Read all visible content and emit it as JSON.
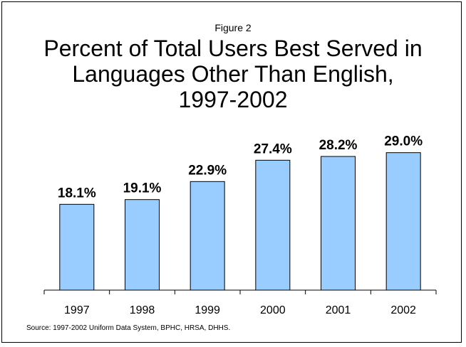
{
  "figure_label": "Figure 2",
  "title_lines": [
    "Percent of Total Users Best Served in",
    "Languages Other Than English,",
    "1997-2002"
  ],
  "source": "Source:  1997-2002 Uniform Data System, BPHC, HRSA, DHHS.",
  "colors": {
    "bar_fill": "#99ccff",
    "bar_stroke": "#000000",
    "axis": "#000000",
    "text": "#000000"
  },
  "chart_data": {
    "type": "bar",
    "title": "Percent of Total Users Best Served in Languages Other Than English, 1997-2002",
    "categories": [
      "1997",
      "1998",
      "1999",
      "2000",
      "2001",
      "2002"
    ],
    "values": [
      18.1,
      19.1,
      22.9,
      27.4,
      28.2,
      29.0
    ],
    "value_labels": [
      "18.1%",
      "19.1%",
      "22.9%",
      "27.4%",
      "28.2%",
      "29.0%"
    ],
    "xlabel": "",
    "ylabel": "",
    "ylim": [
      0,
      45
    ],
    "grid": false,
    "legend": "none"
  }
}
